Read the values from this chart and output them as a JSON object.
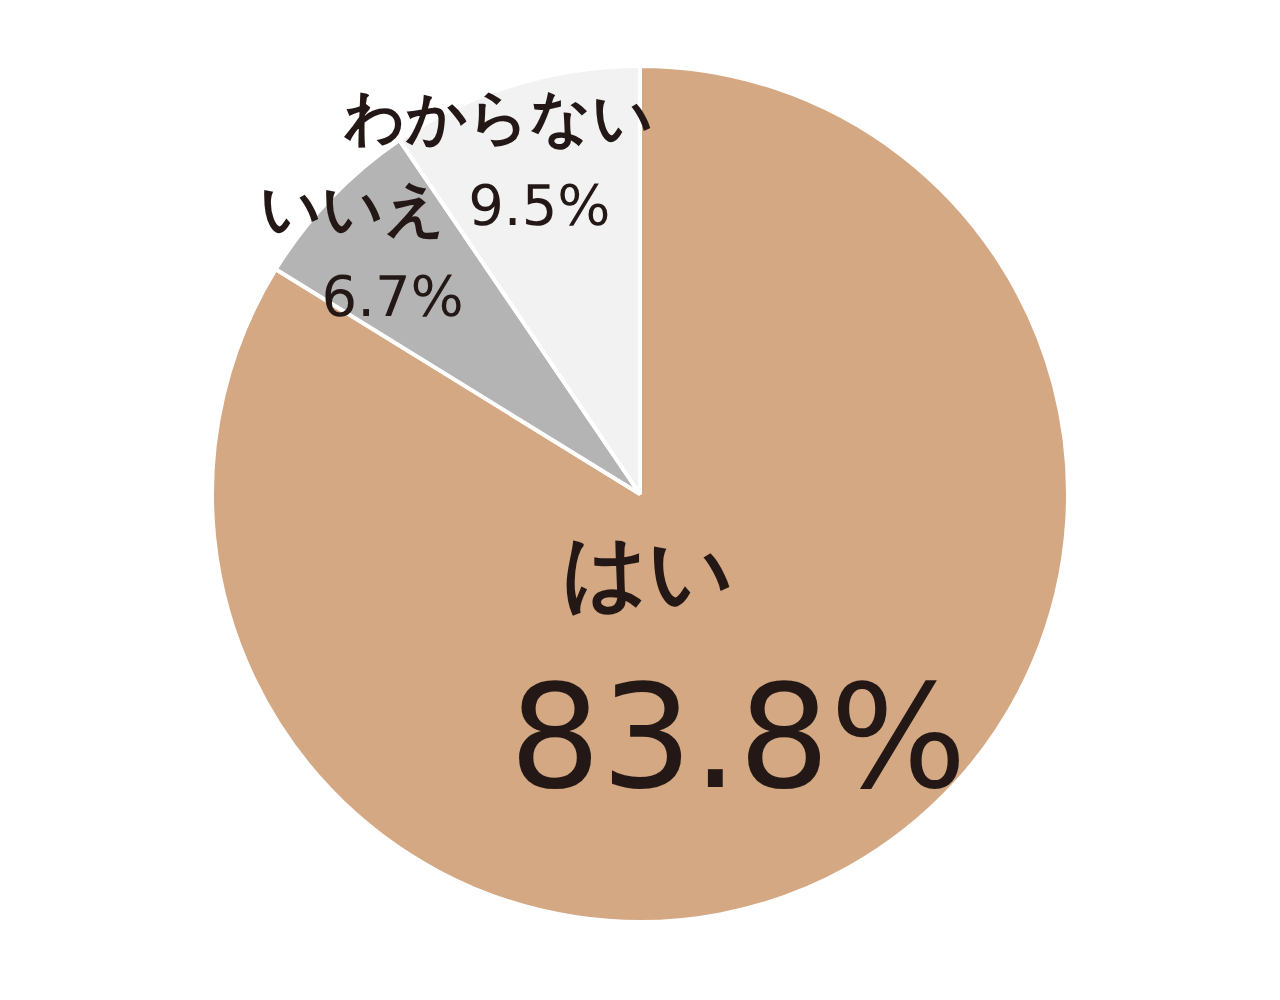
{
  "chart_data": {
    "type": "pie",
    "categories": [
      "はい",
      "いいえ",
      "わからない"
    ],
    "values": [
      83.8,
      6.7,
      9.5
    ],
    "value_labels": [
      "83.8%",
      "6.7%",
      "9.5%"
    ],
    "colors": [
      "#d4a882",
      "#b4b4b4",
      "#f2f2f2"
    ],
    "legend": false
  }
}
